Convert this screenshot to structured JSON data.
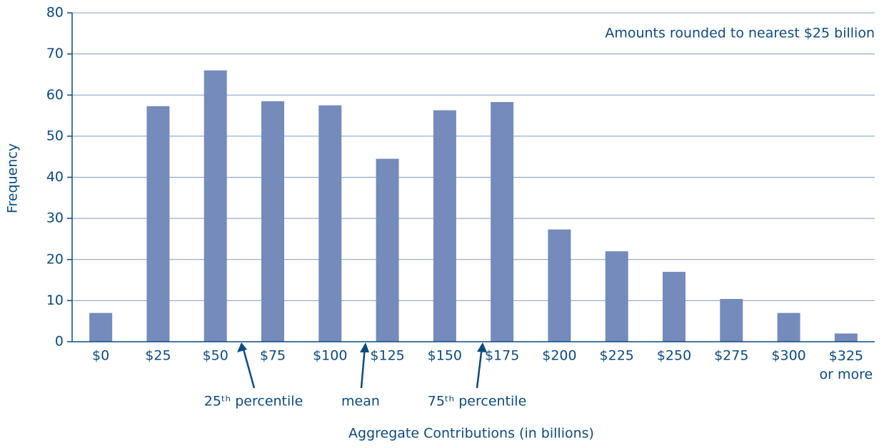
{
  "chart_data": {
    "type": "bar",
    "y_label": "Frequency",
    "x_label": "Aggregate Contributions (in billions)",
    "note": "Amounts rounded to nearest $25 billion",
    "categories": [
      "$0",
      "$25",
      "$50",
      "$75",
      "$100",
      "$125",
      "$150",
      "$175",
      "$200",
      "$225",
      "$250",
      "$275",
      "$300",
      "$325\nor more"
    ],
    "values": [
      7,
      57.3,
      66,
      58.5,
      57.5,
      44.5,
      56.3,
      58.3,
      27.3,
      22,
      17,
      10.4,
      7,
      2
    ],
    "color": "#748bbb",
    "ylim": [
      0,
      80
    ],
    "yticks": [
      0,
      10,
      20,
      30,
      40,
      50,
      60,
      70,
      80
    ],
    "grid": true,
    "annotations": [
      "25ᵗʰ percentile",
      "mean",
      "75ᵗʰ percentile"
    ]
  }
}
